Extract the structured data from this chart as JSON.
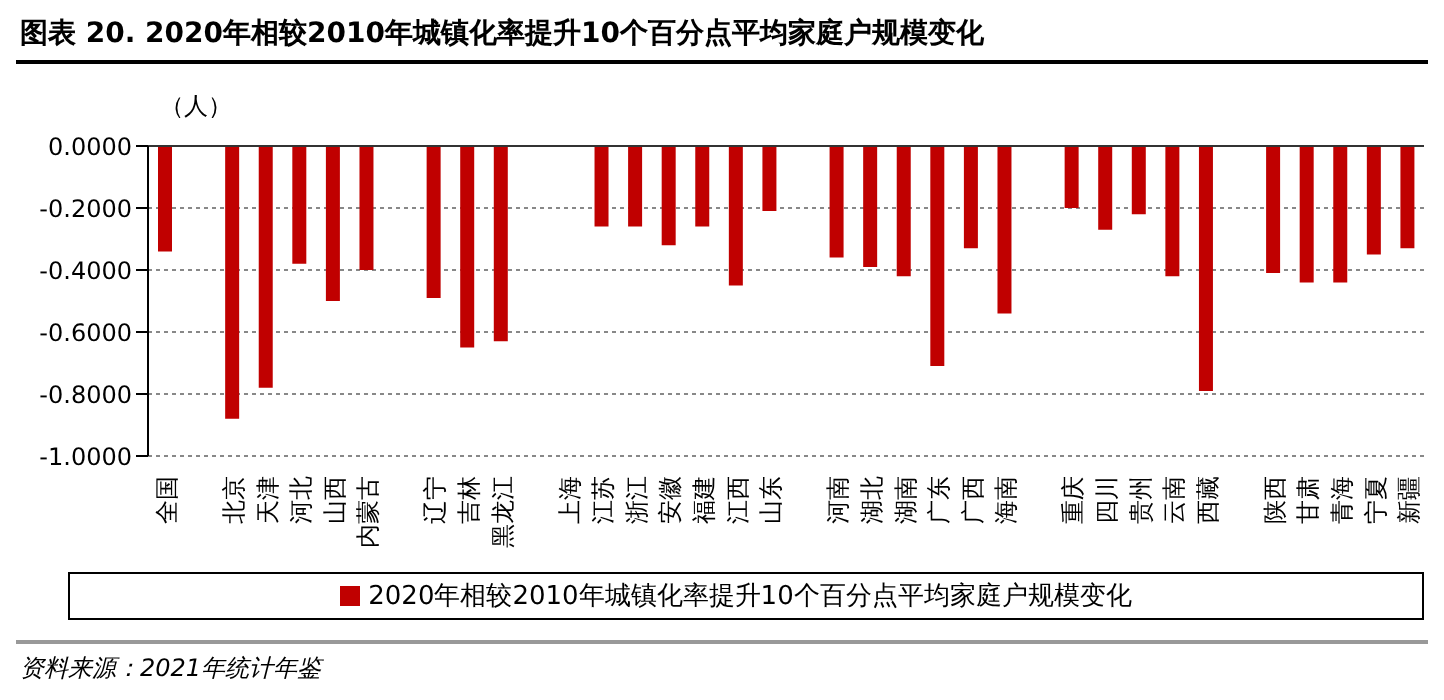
{
  "chart_data": {
    "type": "bar",
    "title": "图表 20. 2020年相较2010年城镇化率提升10个百分点平均家庭户规模变化",
    "ylabel": "（人）",
    "categories": [
      "全国",
      null,
      "北京",
      "天津",
      "河北",
      "山西",
      "内蒙古",
      null,
      "辽宁",
      "吉林",
      "黑龙江",
      null,
      "上海",
      "江苏",
      "浙江",
      "安徽",
      "福建",
      "江西",
      "山东",
      null,
      "河南",
      "湖北",
      "湖南",
      "广东",
      "广西",
      "海南",
      null,
      "重庆",
      "四川",
      "贵州",
      "云南",
      "西藏",
      null,
      "陕西",
      "甘肃",
      "青海",
      "宁夏",
      "新疆"
    ],
    "series": [
      {
        "name": "2020年相较2010年城镇化率提升10个百分点平均家庭户规模变化",
        "color": "#c00000",
        "values": [
          -0.34,
          null,
          -0.88,
          -0.78,
          -0.38,
          -0.5,
          -0.4,
          null,
          -0.49,
          -0.65,
          -0.63,
          null,
          null,
          -0.26,
          -0.26,
          -0.32,
          -0.26,
          -0.45,
          -0.21,
          null,
          -0.36,
          -0.39,
          -0.42,
          -0.71,
          -0.33,
          -0.54,
          null,
          -0.2,
          -0.27,
          -0.22,
          -0.42,
          -0.79,
          null,
          -0.41,
          -0.44,
          -0.44,
          -0.35,
          -0.33
        ]
      }
    ],
    "ylim": [
      -1,
      0
    ],
    "yticks": [
      {
        "value": 0,
        "label": "0.0000"
      },
      {
        "value": -0.2,
        "label": "-0.2000"
      },
      {
        "value": -0.4,
        "label": "-0.4000"
      },
      {
        "value": -0.6,
        "label": "-0.6000"
      },
      {
        "value": -0.8,
        "label": "-0.8000"
      },
      {
        "value": -1,
        "label": "-1.0000"
      }
    ],
    "grid": "y",
    "legend": "bottom",
    "annotations": [
      "资料来源：2021年统计年鉴"
    ]
  }
}
